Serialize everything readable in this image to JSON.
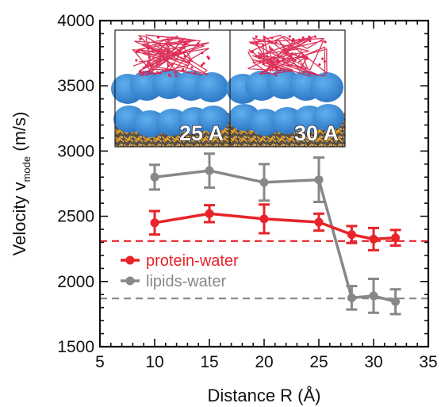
{
  "chart_data": {
    "type": "line",
    "xlabel": "Distance R (Å)",
    "ylabel": "Velocity v",
    "ylabel_subscript": "mode",
    "ylabel_unit": "(m/s)",
    "xlim": [
      5,
      35
    ],
    "ylim": [
      1500,
      4000
    ],
    "xticks": [
      5,
      10,
      15,
      20,
      25,
      30,
      35
    ],
    "yticks": [
      1500,
      2000,
      2500,
      3000,
      3500,
      4000
    ],
    "legend_position": "lower-left",
    "series": [
      {
        "name": "protein-water",
        "color": "#e8232a",
        "x": [
          10,
          15,
          20,
          25,
          28,
          30,
          32
        ],
        "y": [
          2450,
          2520,
          2480,
          2455,
          2360,
          2325,
          2335
        ],
        "yerr": [
          90,
          65,
          110,
          65,
          65,
          85,
          60
        ],
        "reference_line": 2310
      },
      {
        "name": "lipids-water",
        "color": "#888888",
        "x": [
          10,
          15,
          20,
          25,
          28,
          30,
          32
        ],
        "y": [
          2800,
          2850,
          2760,
          2780,
          1875,
          1890,
          1845
        ],
        "yerr": [
          95,
          130,
          140,
          170,
          90,
          130,
          95
        ],
        "reference_line": 1870
      }
    ],
    "inset": {
      "panels": [
        {
          "label": "25 A",
          "icon": "membrane-protein-render"
        },
        {
          "label": "30 A",
          "icon": "membrane-protein-render"
        }
      ]
    }
  }
}
